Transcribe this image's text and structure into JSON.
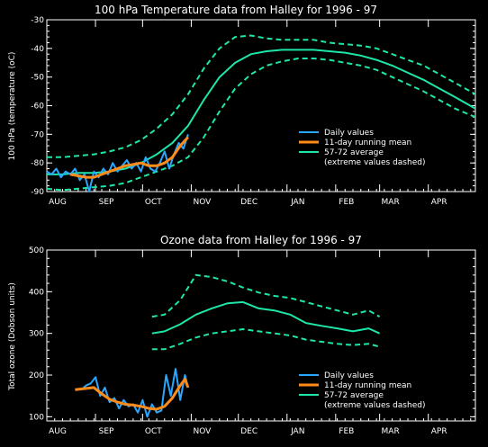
{
  "colors": {
    "daily": "#2aa7ff",
    "running": "#ff8c1a",
    "climatology": "#1ee6a8"
  },
  "chart_data": [
    {
      "type": "line",
      "title": "100 hPa Temperature data from Halley for 1996 - 97",
      "ylabel": "100 hPa (temperature (oC)",
      "xlabel": "",
      "x_unit": "day of season (0 = Aug 1)",
      "xlim": [
        0,
        273
      ],
      "ylim": [
        -90,
        -30
      ],
      "yticks": [
        -90,
        -80,
        -70,
        -60,
        -50,
        -40,
        -30
      ],
      "xticks": [
        {
          "label": "AUG",
          "x": 0
        },
        {
          "label": "SEP",
          "x": 31
        },
        {
          "label": "OCT",
          "x": 61
        },
        {
          "label": "NOV",
          "x": 92
        },
        {
          "label": "DEC",
          "x": 122
        },
        {
          "label": "JAN",
          "x": 153
        },
        {
          "label": "FEB",
          "x": 184
        },
        {
          "label": "MAR",
          "x": 212
        },
        {
          "label": "APR",
          "x": 243
        }
      ],
      "legend": [
        "Daily values",
        "11-day running mean",
        "57-72 average",
        "(extreme values dashed)"
      ],
      "legend_position": "right-lower",
      "series": [
        {
          "name": "57-72 average",
          "role": "clim",
          "x": [
            0,
            10,
            20,
            30,
            40,
            50,
            60,
            70,
            80,
            90,
            100,
            110,
            120,
            130,
            140,
            150,
            160,
            170,
            180,
            190,
            200,
            210,
            220,
            230,
            240,
            250,
            260,
            273
          ],
          "y": [
            -84,
            -84,
            -83.5,
            -83.5,
            -83,
            -82,
            -80,
            -77,
            -73,
            -67,
            -58,
            -50,
            -45,
            -42,
            -41,
            -40.5,
            -40.5,
            -40.5,
            -41,
            -41.5,
            -42.5,
            -44,
            -46,
            -48.5,
            -51,
            -54,
            -57,
            -61
          ]
        },
        {
          "name": "extreme max",
          "role": "clim-dash",
          "x": [
            0,
            10,
            20,
            30,
            40,
            50,
            60,
            70,
            80,
            90,
            100,
            110,
            120,
            130,
            140,
            150,
            160,
            170,
            180,
            190,
            200,
            210,
            220,
            230,
            240,
            250,
            260,
            273
          ],
          "y": [
            -78,
            -78,
            -77.5,
            -77,
            -76,
            -74.5,
            -72,
            -68,
            -63,
            -56,
            -47,
            -40,
            -36,
            -35.5,
            -36.5,
            -37,
            -37,
            -37,
            -38,
            -38.5,
            -39,
            -40,
            -42,
            -44,
            -46,
            -49,
            -52,
            -56
          ]
        },
        {
          "name": "extreme min",
          "role": "clim-dash",
          "x": [
            0,
            10,
            20,
            30,
            40,
            50,
            60,
            70,
            80,
            90,
            100,
            110,
            120,
            130,
            140,
            150,
            160,
            170,
            180,
            190,
            200,
            210,
            220,
            230,
            240,
            250,
            260,
            273
          ],
          "y": [
            -89,
            -89.5,
            -89,
            -88.5,
            -88,
            -87,
            -85,
            -83,
            -81,
            -78,
            -71,
            -62,
            -54,
            -49,
            -46,
            -44.5,
            -43.5,
            -43.5,
            -44,
            -45,
            -46,
            -47.5,
            -50,
            -52.5,
            -55,
            -58,
            -61,
            -64
          ]
        },
        {
          "name": "Daily values",
          "role": "daily",
          "x": [
            0,
            3,
            6,
            9,
            12,
            15,
            18,
            21,
            24,
            27,
            30,
            33,
            36,
            39,
            42,
            45,
            48,
            51,
            54,
            57,
            60,
            63,
            66,
            69,
            72,
            75,
            78,
            81,
            84,
            87,
            90
          ],
          "y": [
            -83,
            -84,
            -82,
            -85,
            -83,
            -84,
            -82,
            -86,
            -84,
            -90,
            -83,
            -85,
            -82,
            -84,
            -80,
            -83,
            -81,
            -79,
            -82,
            -80,
            -83,
            -78,
            -82,
            -83,
            -80,
            -76,
            -82,
            -77,
            -73,
            -75,
            -70
          ]
        },
        {
          "name": "11-day running mean",
          "role": "running",
          "x": [
            15,
            20,
            25,
            30,
            35,
            40,
            45,
            50,
            55,
            60,
            65,
            70,
            75,
            80,
            85,
            90
          ],
          "y": [
            -84,
            -84.5,
            -85,
            -85,
            -84,
            -83,
            -82,
            -81,
            -80.5,
            -80,
            -81,
            -81,
            -80,
            -78,
            -74,
            -71
          ]
        }
      ]
    },
    {
      "type": "line",
      "title": "Ozone data from Halley for 1996 - 97",
      "ylabel": "Total ozone (Dobson units)",
      "xlabel": "",
      "x_unit": "day of season (0 = Aug 1)",
      "xlim": [
        0,
        273
      ],
      "ylim": [
        90,
        500
      ],
      "yticks": [
        100,
        200,
        300,
        400,
        500
      ],
      "xticks": [
        {
          "label": "AUG",
          "x": 0
        },
        {
          "label": "SEP",
          "x": 31
        },
        {
          "label": "OCT",
          "x": 61
        },
        {
          "label": "NOV",
          "x": 92
        },
        {
          "label": "DEC",
          "x": 122
        },
        {
          "label": "JAN",
          "x": 153
        },
        {
          "label": "FEB",
          "x": 184
        },
        {
          "label": "MAR",
          "x": 212
        },
        {
          "label": "APR",
          "x": 243
        }
      ],
      "legend": [
        "Daily values",
        "11-day running mean",
        "57-72 average",
        "(extreme values dashed)"
      ],
      "legend_position": "right-lower",
      "series": [
        {
          "name": "57-72 average",
          "role": "clim",
          "x": [
            67,
            75,
            85,
            95,
            105,
            115,
            125,
            135,
            145,
            155,
            165,
            175,
            185,
            195,
            205,
            212
          ],
          "y": [
            300,
            305,
            322,
            345,
            360,
            372,
            375,
            360,
            355,
            345,
            325,
            318,
            312,
            305,
            312,
            300
          ]
        },
        {
          "name": "extreme max",
          "role": "clim-dash",
          "x": [
            67,
            75,
            85,
            95,
            105,
            115,
            125,
            135,
            145,
            155,
            165,
            175,
            185,
            195,
            205,
            212
          ],
          "y": [
            340,
            345,
            380,
            440,
            435,
            425,
            410,
            398,
            390,
            385,
            375,
            365,
            355,
            345,
            355,
            340
          ]
        },
        {
          "name": "extreme min",
          "role": "clim-dash",
          "x": [
            67,
            75,
            85,
            95,
            105,
            115,
            125,
            135,
            145,
            155,
            165,
            175,
            185,
            195,
            205,
            212
          ],
          "y": [
            262,
            262,
            275,
            290,
            300,
            305,
            310,
            305,
            300,
            295,
            285,
            280,
            275,
            272,
            275,
            268
          ]
        },
        {
          "name": "Daily values",
          "role": "daily",
          "x": [
            22,
            25,
            28,
            31,
            34,
            37,
            40,
            43,
            46,
            49,
            52,
            55,
            58,
            61,
            64,
            67,
            70,
            73,
            76,
            79,
            82,
            85,
            88,
            90
          ],
          "y": [
            165,
            175,
            180,
            195,
            150,
            170,
            135,
            145,
            120,
            140,
            125,
            130,
            110,
            140,
            100,
            130,
            110,
            115,
            200,
            150,
            215,
            140,
            200,
            170
          ]
        },
        {
          "name": "11-day running mean",
          "role": "running",
          "x": [
            18,
            25,
            30,
            35,
            40,
            45,
            50,
            55,
            60,
            65,
            70,
            75,
            80,
            85,
            88,
            90
          ],
          "y": [
            165,
            168,
            170,
            155,
            142,
            135,
            130,
            128,
            125,
            120,
            118,
            125,
            145,
            175,
            190,
            170
          ]
        }
      ]
    }
  ]
}
